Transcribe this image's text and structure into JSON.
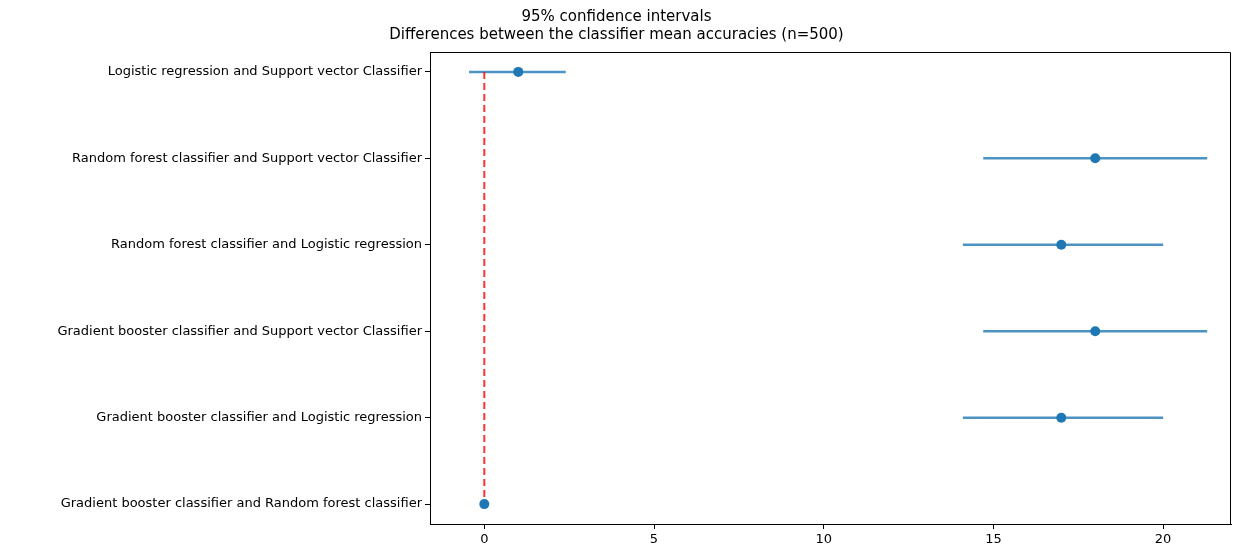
{
  "chart_data": {
    "type": "scatter",
    "orientation": "horizontal",
    "title": "95% confidence intervals\nDifferences between the classifier mean accuracies (n=500)",
    "categories": [
      "Logistic regression and Support vector Classifier",
      "Random forest classifier and Support vector Classifier",
      "Random forest classifier and Logistic regression",
      "Gradient booster classifier and Support vector Classifier",
      "Gradient booster classifier and Logistic regression",
      "Gradient booster classifier and Random forest classifier"
    ],
    "values": [
      1.0,
      18.0,
      17.0,
      18.0,
      17.0,
      0.0
    ],
    "errors": [
      [
        -0.45,
        2.4
      ],
      [
        14.7,
        21.3
      ],
      [
        14.1,
        20.0
      ],
      [
        14.7,
        21.3
      ],
      [
        14.1,
        20.0
      ],
      [
        -0.1,
        0.1
      ]
    ],
    "color": "#1f77b4",
    "marker": "circle",
    "xlim": [
      -1.6,
      22.0
    ],
    "xticks": [
      0,
      5,
      10,
      15,
      20
    ],
    "ref_lines": [
      {
        "axis": "x",
        "value": 0,
        "color": "#ff0000",
        "line_style": "dashed"
      }
    ],
    "grid": false,
    "legend": false
  }
}
